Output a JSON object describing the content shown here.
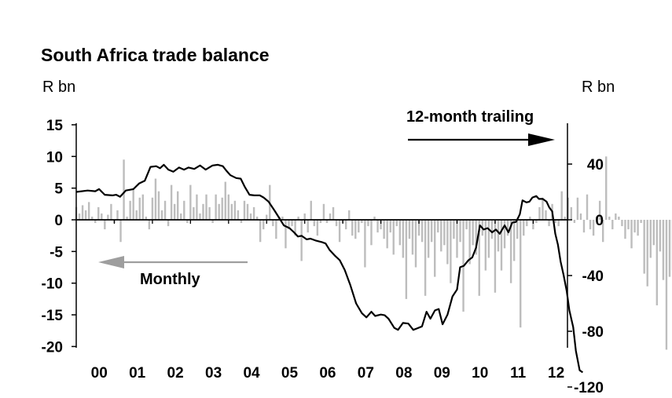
{
  "chart_data": {
    "type": "bar+line",
    "title": "South Africa trade balance",
    "left_axis_unit": "R bn",
    "right_axis_unit": "R bn",
    "left_ylim": [
      -20,
      15
    ],
    "left_ticks": [
      "15",
      "10",
      "5",
      "0",
      "-5",
      "-10",
      "-15",
      "-20"
    ],
    "left_tick_values": [
      15,
      10,
      5,
      0,
      -5,
      -10,
      -15,
      -20
    ],
    "right_ylim": [
      -120,
      40
    ],
    "right_ticks": [
      "40",
      "0",
      "-40",
      "-80",
      "-120"
    ],
    "right_tick_values": [
      40,
      0,
      -40,
      -80,
      -120
    ],
    "x_range": [
      2000,
      2012.9
    ],
    "x_ticks": [
      "00",
      "01",
      "02",
      "03",
      "04",
      "05",
      "06",
      "07",
      "08",
      "09",
      "10",
      "11",
      "12"
    ],
    "x_tick_values": [
      2000.5,
      2001.5,
      2002.5,
      2003.5,
      2004.5,
      2005.5,
      2006.5,
      2007.5,
      2008.5,
      2009.5,
      2010.5,
      2011.5,
      2012.5
    ],
    "grid": false,
    "annotations": {
      "line_label": "12-month trailing",
      "bars_label": "Monthly"
    },
    "colors": {
      "bars": "#bdbdbd",
      "line": "#000000",
      "axis": "#000000",
      "arrow_bars": "#9e9e9e",
      "arrow_line": "#000000"
    },
    "series": [
      {
        "name": "Monthly",
        "kind": "bar",
        "axis": "left",
        "start": 2000.0,
        "step": 0.08333,
        "values": [
          2.0,
          1.0,
          2.3,
          1.5,
          2.8,
          0.5,
          -0.5,
          2.0,
          1.0,
          -1.5,
          0.8,
          2.5,
          -0.5,
          1.5,
          -3.5,
          9.5,
          0.5,
          3.0,
          5.0,
          1.5,
          3.5,
          4.0,
          0.5,
          -1.5,
          3.5,
          6.5,
          4.5,
          1.5,
          3.0,
          -1.0,
          5.5,
          2.5,
          4.5,
          1.0,
          3.0,
          -0.5,
          5.5,
          2.0,
          4.0,
          1.0,
          2.5,
          4.0,
          2.0,
          -0.5,
          4.0,
          2.5,
          3.5,
          6.0,
          4.0,
          2.5,
          3.0,
          1.5,
          -0.5,
          3.0,
          2.5,
          1.0,
          2.0,
          0.5,
          -3.5,
          -1.5,
          0.8,
          5.5,
          -1.0,
          -3.0,
          0.5,
          0.5,
          -4.5,
          -1.5,
          -1.0,
          -2.5,
          0.5,
          -6.5,
          1.0,
          -2.0,
          3.0,
          -1.0,
          -2.5,
          -0.5,
          2.5,
          -0.5,
          1.0,
          2.0,
          -1.0,
          -3.5,
          -0.5,
          -1.5,
          1.5,
          -2.5,
          -3.0,
          -2.0,
          -0.5,
          -7.5,
          -1.0,
          -4.0,
          0.5,
          -2.0,
          -1.5,
          -3.0,
          -4.5,
          -2.0,
          -5.5,
          -1.0,
          -4.0,
          -6.0,
          -12.5,
          -3.0,
          -5.5,
          -7.5,
          -2.5,
          -3.5,
          -12.0,
          -6.0,
          -3.5,
          -9.0,
          -2.0,
          -5.0,
          -4.0,
          -7.0,
          -10.0,
          -3.0,
          -6.0,
          -3.5,
          -14.5,
          -1.5,
          -7.0,
          -4.0,
          -5.5,
          -12.0,
          -2.5,
          -8.0,
          -6.0,
          -3.0,
          -11.5,
          -5.0,
          -8.0,
          -4.5,
          -2.5,
          -10.0,
          -6.5,
          -3.0,
          -17.0,
          -2.5,
          -1.0,
          0.5,
          -1.5,
          -0.5,
          2.0,
          3.5,
          1.5,
          -1.0,
          2.5,
          -0.5,
          -1.0,
          4.5,
          0.5,
          3.5,
          2.0,
          -0.5,
          3.5,
          1.0,
          -2.0,
          4.0,
          -1.5,
          -2.5,
          0.5,
          3.0,
          -3.5,
          10.0,
          0.5,
          -1.5,
          1.0,
          0.5,
          -1.0,
          -3.0,
          -1.5,
          -4.5,
          -2.0,
          -2.5,
          -0.5,
          -8.5,
          -10.5,
          -6.0,
          -4.0,
          -13.5,
          -5.0,
          -9.5,
          -20.5,
          -9.0,
          -8.0,
          -20.0,
          -8.0
        ]
      },
      {
        "name": "12-month trailing",
        "kind": "line",
        "axis": "right",
        "points": [
          [
            2000.0,
            20
          ],
          [
            2000.3,
            21
          ],
          [
            2000.5,
            20.5
          ],
          [
            2000.6,
            22
          ],
          [
            2000.75,
            18
          ],
          [
            2000.95,
            17.5
          ],
          [
            2001.05,
            18
          ],
          [
            2001.15,
            16.5
          ],
          [
            2001.3,
            21
          ],
          [
            2001.5,
            22
          ],
          [
            2001.65,
            26
          ],
          [
            2001.8,
            28
          ],
          [
            2001.95,
            38
          ],
          [
            2002.1,
            38.5
          ],
          [
            2002.2,
            37
          ],
          [
            2002.3,
            39.5
          ],
          [
            2002.42,
            36
          ],
          [
            2002.55,
            34.5
          ],
          [
            2002.7,
            37.5
          ],
          [
            2002.83,
            36
          ],
          [
            2002.95,
            37.5
          ],
          [
            2003.1,
            36.5
          ],
          [
            2003.25,
            39
          ],
          [
            2003.4,
            36
          ],
          [
            2003.58,
            39
          ],
          [
            2003.72,
            39.5
          ],
          [
            2003.85,
            38.5
          ],
          [
            2003.95,
            35
          ],
          [
            2004.05,
            32
          ],
          [
            2004.2,
            30
          ],
          [
            2004.32,
            29.5
          ],
          [
            2004.42,
            24
          ],
          [
            2004.55,
            18
          ],
          [
            2004.68,
            17.5
          ],
          [
            2004.82,
            17.5
          ],
          [
            2004.92,
            16
          ],
          [
            2005.05,
            13
          ],
          [
            2005.2,
            7
          ],
          [
            2005.35,
            0.5
          ],
          [
            2005.45,
            -4
          ],
          [
            2005.6,
            -6
          ],
          [
            2005.72,
            -9
          ],
          [
            2005.82,
            -12
          ],
          [
            2005.92,
            -11.5
          ],
          [
            2006.05,
            -14
          ],
          [
            2006.15,
            -13.5
          ],
          [
            2006.3,
            -15
          ],
          [
            2006.45,
            -16
          ],
          [
            2006.55,
            -17
          ],
          [
            2006.65,
            -21.5
          ],
          [
            2006.8,
            -26
          ],
          [
            2006.92,
            -29
          ],
          [
            2007.05,
            -36
          ],
          [
            2007.2,
            -47
          ],
          [
            2007.35,
            -60
          ],
          [
            2007.5,
            -67
          ],
          [
            2007.62,
            -70
          ],
          [
            2007.75,
            -66
          ],
          [
            2007.85,
            -69
          ],
          [
            2008.0,
            -68
          ],
          [
            2008.1,
            -68.5
          ],
          [
            2008.2,
            -71
          ],
          [
            2008.35,
            -77.5
          ],
          [
            2008.45,
            -79
          ],
          [
            2008.58,
            -74
          ],
          [
            2008.72,
            -74.5
          ],
          [
            2008.85,
            -79
          ],
          [
            2008.95,
            -78
          ],
          [
            2009.08,
            -76.5
          ],
          [
            2009.2,
            -66
          ],
          [
            2009.3,
            -71
          ],
          [
            2009.42,
            -65
          ],
          [
            2009.52,
            -64
          ],
          [
            2009.62,
            -75
          ],
          [
            2009.75,
            -68
          ],
          [
            2009.88,
            -55
          ],
          [
            2010.0,
            -50
          ],
          [
            2010.08,
            -34
          ],
          [
            2010.18,
            -33
          ],
          [
            2010.3,
            -29
          ],
          [
            2010.4,
            -27
          ],
          [
            2010.5,
            -20
          ],
          [
            2010.6,
            -4
          ],
          [
            2010.7,
            -7
          ],
          [
            2010.8,
            -6
          ],
          [
            2010.92,
            -9
          ],
          [
            2011.02,
            -7
          ],
          [
            2011.12,
            -10
          ],
          [
            2011.25,
            -4
          ],
          [
            2011.35,
            -9
          ],
          [
            2011.45,
            -2
          ],
          [
            2011.55,
            -1.5
          ],
          [
            2011.65,
            4
          ],
          [
            2011.72,
            14
          ],
          [
            2011.82,
            12.5
          ],
          [
            2011.9,
            13
          ],
          [
            2011.98,
            16
          ],
          [
            2012.08,
            17
          ],
          [
            2012.15,
            15
          ],
          [
            2012.25,
            15
          ],
          [
            2012.35,
            13
          ],
          [
            2012.42,
            9
          ],
          [
            2012.5,
            6
          ],
          [
            2012.58,
            -10
          ],
          [
            2012.65,
            -18
          ],
          [
            2012.72,
            -30
          ],
          [
            2012.8,
            -40
          ],
          [
            2012.88,
            -51
          ],
          [
            2012.95,
            -65
          ],
          [
            2013.05,
            -77
          ],
          [
            2013.12,
            -94
          ],
          [
            2013.22,
            -108
          ],
          [
            2013.3,
            -109.5
          ]
        ]
      }
    ]
  }
}
